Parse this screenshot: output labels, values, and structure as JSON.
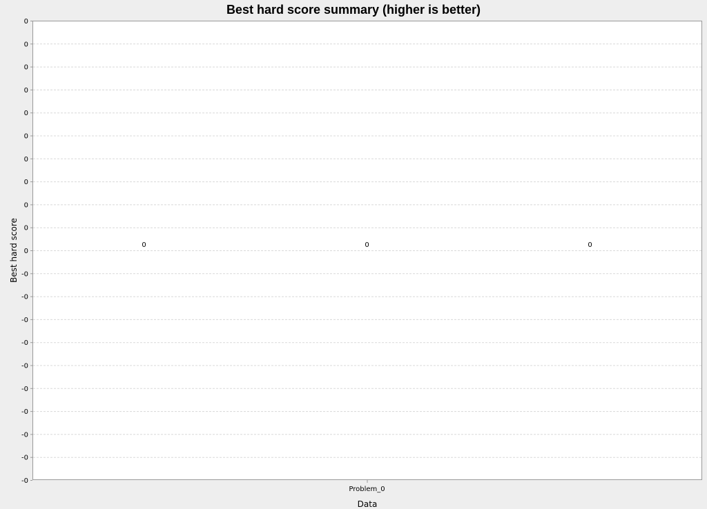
{
  "chart_data": {
    "type": "bar",
    "title": "Best hard score summary (higher is better)",
    "xlabel": "Data",
    "ylabel": "Best hard score",
    "categories": [
      "Problem_0"
    ],
    "series": [
      {
        "values": [
          0
        ]
      },
      {
        "values": [
          0
        ]
      },
      {
        "values": [
          0
        ]
      }
    ],
    "data_labels": [
      "0",
      "0",
      "0"
    ],
    "ylim": [
      -1e-06,
      1e-06
    ],
    "y_tick_labels": [
      "0",
      "0",
      "0",
      "0",
      "0",
      "0",
      "0",
      "0",
      "0",
      "0",
      "0",
      "-0",
      "-0",
      "-0",
      "-0",
      "-0",
      "-0",
      "-0",
      "-0",
      "-0",
      "-0"
    ],
    "grid": true,
    "legend": "none",
    "colors": {
      "background": "#eeeeee",
      "plot_background": "#ffffff",
      "plot_border": "#999999",
      "gridline": "#d8d8d8"
    }
  }
}
